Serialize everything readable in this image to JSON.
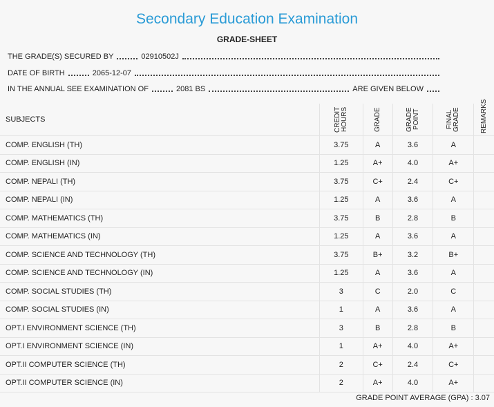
{
  "header": {
    "title": "Secondary Education Examination",
    "subtitle": "GRADE-SHEET"
  },
  "info": [
    {
      "label": "THE GRADE(S) SECURED BY",
      "value": "02910502J"
    },
    {
      "label": "DATE OF BIRTH",
      "value": "2065-12-07"
    },
    {
      "label": "IN THE ANNUAL SEE EXAMINATION OF",
      "value": "2081 BS",
      "suffix": "ARE GIVEN BELOW"
    }
  ],
  "table": {
    "columns": [
      "SUBJECTS",
      "CREDIT HOURS",
      "GRADE",
      "GRADE POINT",
      "FINAL GRADE",
      "REMARKS"
    ],
    "rows": [
      [
        "COMP. ENGLISH (TH)",
        "3.75",
        "A",
        "3.6",
        "A"
      ],
      [
        "COMP. ENGLISH (IN)",
        "1.25",
        "A+",
        "4.0",
        "A+"
      ],
      [
        "COMP. NEPALI (TH)",
        "3.75",
        "C+",
        "2.4",
        "C+"
      ],
      [
        "COMP. NEPALI (IN)",
        "1.25",
        "A",
        "3.6",
        "A"
      ],
      [
        "COMP. MATHEMATICS (TH)",
        "3.75",
        "B",
        "2.8",
        "B"
      ],
      [
        "COMP. MATHEMATICS (IN)",
        "1.25",
        "A",
        "3.6",
        "A"
      ],
      [
        "COMP. SCIENCE AND TECHNOLOGY (TH)",
        "3.75",
        "B+",
        "3.2",
        "B+"
      ],
      [
        "COMP. SCIENCE AND TECHNOLOGY (IN)",
        "1.25",
        "A",
        "3.6",
        "A"
      ],
      [
        "COMP. SOCIAL STUDIES (TH)",
        "3",
        "C",
        "2.0",
        "C"
      ],
      [
        "COMP. SOCIAL STUDIES (IN)",
        "1",
        "A",
        "3.6",
        "A"
      ],
      [
        "OPT.I ENVIRONMENT SCIENCE (TH)",
        "3",
        "B",
        "2.8",
        "B"
      ],
      [
        "OPT.I ENVIRONMENT SCIENCE (IN)",
        "1",
        "A+",
        "4.0",
        "A+"
      ],
      [
        "OPT.II COMPUTER SCIENCE (TH)",
        "2",
        "C+",
        "2.4",
        "C+"
      ],
      [
        "OPT.II COMPUTER SCIENCE (IN)",
        "2",
        "A+",
        "4.0",
        "A+"
      ]
    ]
  },
  "footer": {
    "label": "GRADE POINT AVERAGE (GPA) :",
    "value": "3.07"
  }
}
